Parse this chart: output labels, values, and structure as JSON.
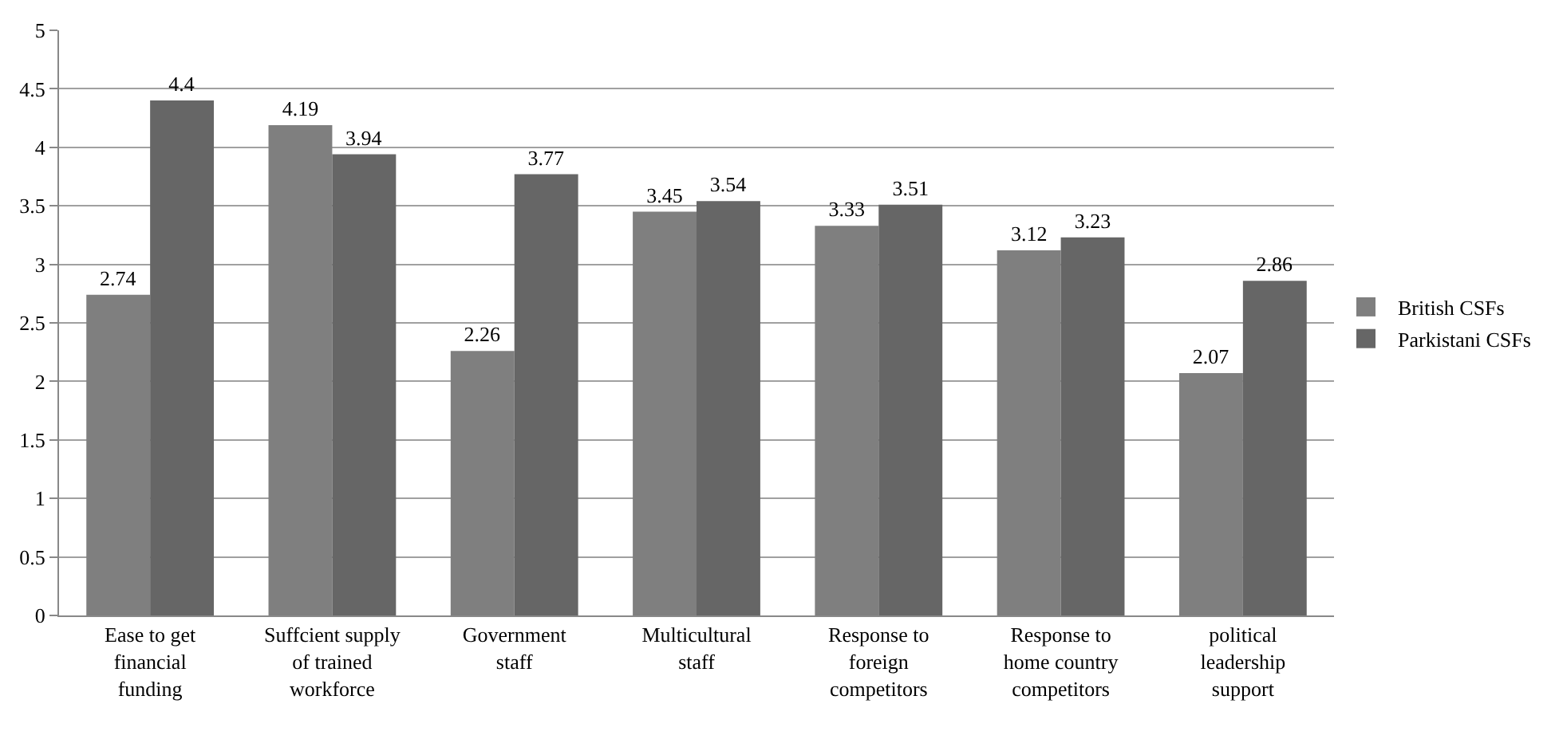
{
  "chart_data": {
    "type": "bar",
    "categories": [
      "Ease to get\nfinancial\nfunding",
      "Suffcient supply\nof trained\nworkforce",
      "Government\nstaff",
      "Multicultural\nstaff",
      "Response to\nforeign\ncompetitors",
      "Response to\nhome country\ncompetitors",
      "political\nleadership\nsupport"
    ],
    "series": [
      {
        "name": "British CSFs",
        "color": "#7f7f7f",
        "values": [
          2.74,
          4.19,
          2.26,
          3.45,
          3.33,
          3.12,
          2.07
        ]
      },
      {
        "name": "Parkistani CSFs",
        "color": "#666666",
        "values": [
          4.4,
          3.94,
          3.77,
          3.54,
          3.51,
          3.23,
          2.86
        ]
      }
    ],
    "ylim": [
      0,
      5
    ],
    "yticks": [
      0,
      0.5,
      1,
      1.5,
      2,
      2.5,
      3,
      3.5,
      4,
      4.5,
      5
    ],
    "grid": "y",
    "legend": "right",
    "data_labels": true
  }
}
